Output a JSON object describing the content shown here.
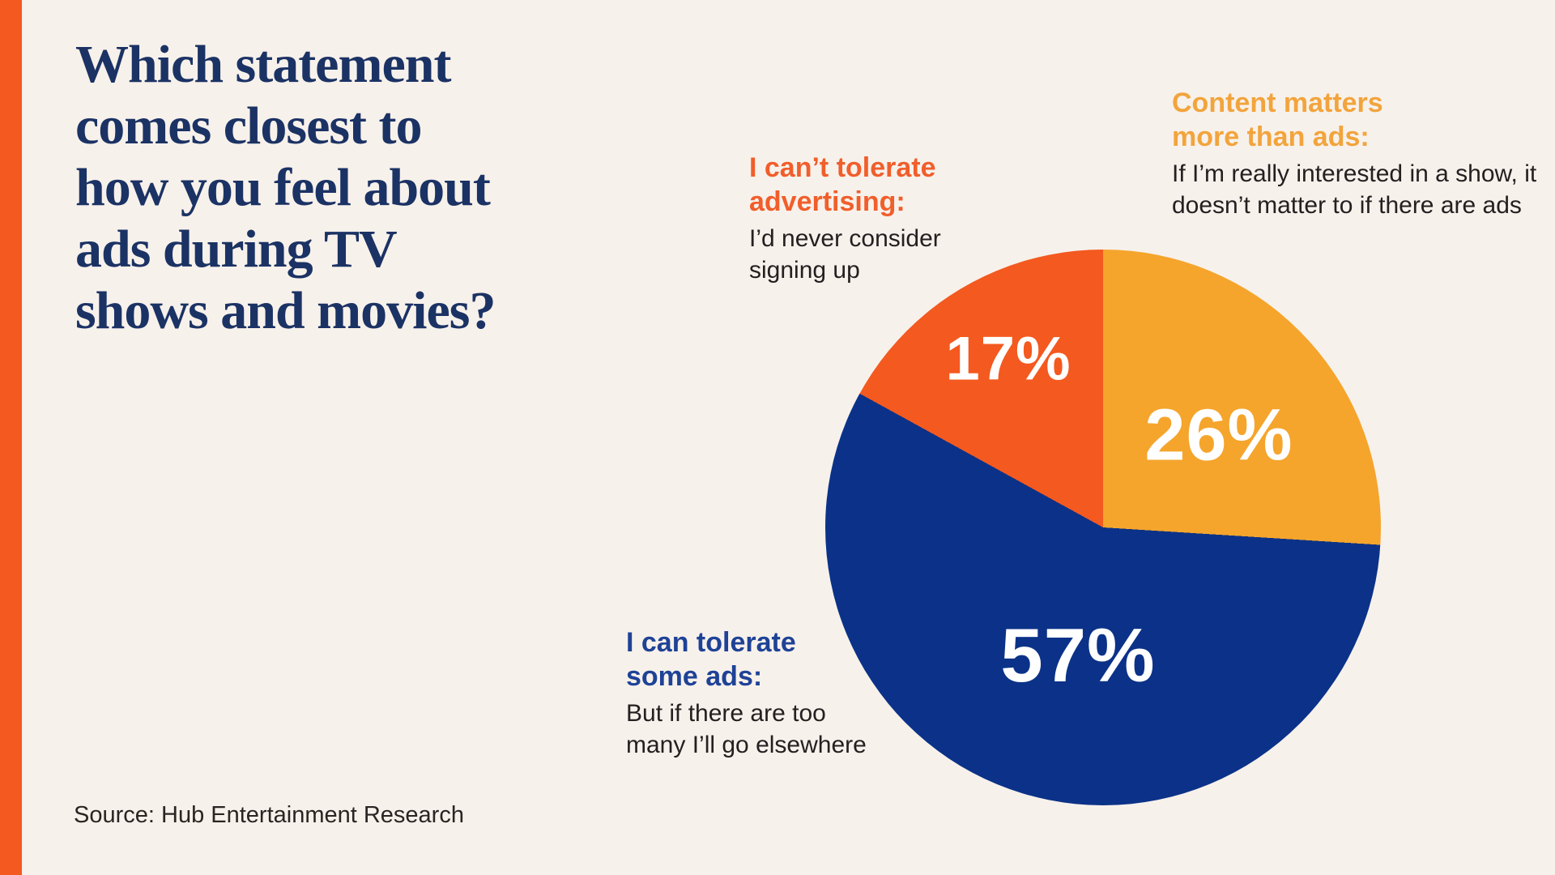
{
  "page": {
    "background_color": "#F7F1EB",
    "accent_bar_color": "#F4591F"
  },
  "title": {
    "text": "Which statement comes closest to how you feel about ads during TV shows and movies?",
    "lines": [
      "Which statement",
      "comes closest to",
      "how you feel about",
      "ads during TV",
      "shows and movies?"
    ],
    "color": "#1B3264"
  },
  "chart_data": {
    "type": "pie",
    "title": "Which statement comes closest to how you feel about ads during TV shows and movies?",
    "start_angle_deg": 0,
    "direction": "clockwise",
    "slices": [
      {
        "label": "Content matters more than ads",
        "description": "If I’m really interested in a show, it doesn’t matter to if there are ads",
        "value": 26,
        "pct_label": "26%",
        "color": "#F5A52C"
      },
      {
        "label": "I can tolerate some ads",
        "description": "But if there are too many I’ll go elsewhere",
        "value": 57,
        "pct_label": "57%",
        "color": "#0B3288"
      },
      {
        "label": "I can’t tolerate advertising",
        "description": "I’d never consider signing up",
        "value": 17,
        "pct_label": "17%",
        "color": "#F4591F"
      }
    ],
    "value_label_color": "#FFFFFF",
    "source": "Source: Hub Entertainment Research"
  },
  "annotations": {
    "cant_tolerate": {
      "heading_line1": "I can’t tolerate",
      "heading_line2": "advertising:",
      "body_line1": "I’d never consider",
      "body_line2": "signing up",
      "heading_color": "#F15E2B"
    },
    "content_matters": {
      "heading_line1": "Content matters",
      "heading_line2": "more than ads:",
      "body_line1": "If I’m really interested in a show, it",
      "body_line2": "doesn’t matter to if there are ads",
      "heading_color": "#F2A43C"
    },
    "tolerate_some": {
      "heading_line1": "I can tolerate",
      "heading_line2": "some ads:",
      "body_line1": "But if there are too",
      "body_line2": "many I’ll go elsewhere",
      "heading_color": "#1E4296"
    }
  },
  "source": {
    "text": "Source: Hub Entertainment Research"
  }
}
